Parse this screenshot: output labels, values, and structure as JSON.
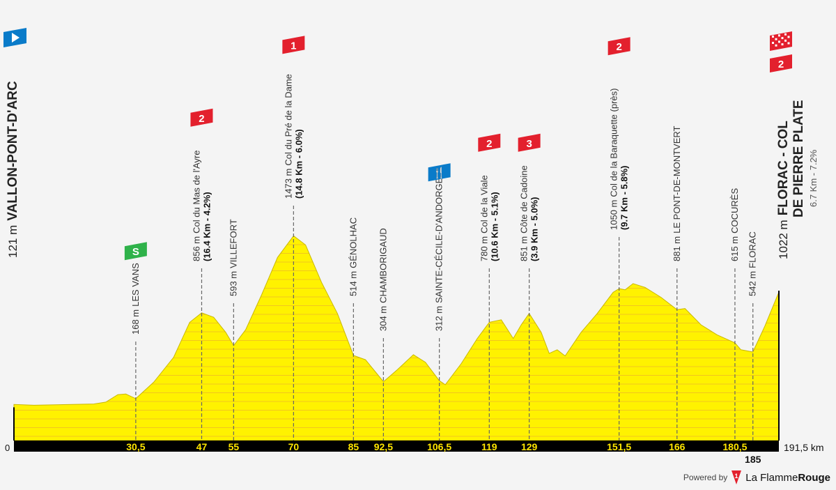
{
  "chart_data": {
    "type": "area",
    "xlim": [
      0,
      191.5
    ],
    "x_unit": "km",
    "profile": [
      [
        0,
        121
      ],
      [
        5,
        115
      ],
      [
        20,
        125
      ],
      [
        23,
        140
      ],
      [
        26,
        200
      ],
      [
        28,
        205
      ],
      [
        30.5,
        168
      ],
      [
        35,
        300
      ],
      [
        40,
        500
      ],
      [
        44,
        780
      ],
      [
        47,
        856
      ],
      [
        50,
        820
      ],
      [
        53,
        700
      ],
      [
        55,
        593
      ],
      [
        58,
        720
      ],
      [
        62,
        1000
      ],
      [
        66,
        1300
      ],
      [
        70,
        1473
      ],
      [
        73,
        1400
      ],
      [
        77,
        1100
      ],
      [
        81,
        850
      ],
      [
        85,
        514
      ],
      [
        88,
        480
      ],
      [
        92.5,
        304
      ],
      [
        96,
        400
      ],
      [
        100,
        520
      ],
      [
        103,
        460
      ],
      [
        106.5,
        312
      ],
      [
        108,
        280
      ],
      [
        112,
        450
      ],
      [
        116,
        650
      ],
      [
        119,
        780
      ],
      [
        122,
        800
      ],
      [
        125,
        650
      ],
      [
        127,
        760
      ],
      [
        129,
        851
      ],
      [
        132,
        700
      ],
      [
        134,
        530
      ],
      [
        136,
        560
      ],
      [
        138,
        510
      ],
      [
        142,
        700
      ],
      [
        146,
        850
      ],
      [
        150,
        1020
      ],
      [
        151.5,
        1050
      ],
      [
        153,
        1040
      ],
      [
        155,
        1090
      ],
      [
        158,
        1060
      ],
      [
        162,
        980
      ],
      [
        166,
        881
      ],
      [
        168,
        890
      ],
      [
        172,
        760
      ],
      [
        176,
        680
      ],
      [
        180.5,
        615
      ],
      [
        182,
        560
      ],
      [
        185,
        542
      ],
      [
        188,
        750
      ],
      [
        191.5,
        1022
      ]
    ],
    "km_ticks": [
      "30,5",
      "47",
      "55",
      "70",
      "85",
      "92,5",
      "106,5",
      "119",
      "129",
      "151,5",
      "166",
      "180,5"
    ],
    "km_tick_values": [
      30.5,
      47,
      55,
      70,
      85,
      92.5,
      106.5,
      119,
      129,
      151.5,
      166,
      180.5
    ],
    "extra_tick": {
      "km": 185,
      "label": "185"
    },
    "origin_label": "0",
    "end_label": "191,5 km",
    "fill_color": "#fff200",
    "stripe_color": "#e8a23a",
    "start": {
      "km": 0,
      "alt": "121 m",
      "name": "VALLON-PONT-D'ARC",
      "icon": "start-flag-icon",
      "icon_color": "#0a7bc9"
    },
    "finish": {
      "km": 191.5,
      "alt": "1022 m",
      "name1": "FLORAC - COL",
      "name2": "DE PIERRE PLATE",
      "climb": "6.7 Km - 7.2%",
      "icon": "finish-checkered-flag-icon",
      "category": "2",
      "icon_color": "#e3202d"
    },
    "points": [
      {
        "km": 30.5,
        "alt": "168 m",
        "name": "LES VANS",
        "icon": "sprint-icon",
        "badge": "S",
        "color": "#2fb24a"
      },
      {
        "km": 47,
        "alt": "856 m",
        "name": "Col du Mas de l'Ayre",
        "detail": "(16.4 Km - 4.2%)",
        "icon": "climb-category-icon",
        "badge": "2",
        "color": "#e3202d"
      },
      {
        "km": 55,
        "alt": "593 m",
        "name": "VILLEFORT"
      },
      {
        "km": 70,
        "alt": "1473 m",
        "name": "Col du Pré de la Dame",
        "detail": "(14.8 Km - 6.0%)",
        "icon": "climb-category-icon",
        "badge": "1",
        "color": "#e3202d"
      },
      {
        "km": 85,
        "alt": "514 m",
        "name": "GÉNOLHAC"
      },
      {
        "km": 92.5,
        "alt": "304 m",
        "name": "CHAMBORIGAUD"
      },
      {
        "km": 106.5,
        "alt": "312 m",
        "name": "SAINTE-CÉCILE-D'ANDORGE",
        "icon": "feed-zone-icon",
        "badge": "🍴",
        "color": "#0a7bc9"
      },
      {
        "km": 119,
        "alt": "780 m",
        "name": "Col de la Viale",
        "detail": "(10.6 Km - 5.1%)",
        "icon": "climb-category-icon",
        "badge": "2",
        "color": "#e3202d"
      },
      {
        "km": 129,
        "alt": "851 m",
        "name": "Côte de Cadoine",
        "detail": "(3.9 Km - 5.0%)",
        "icon": "climb-category-icon",
        "badge": "3",
        "color": "#e3202d"
      },
      {
        "km": 151.5,
        "alt": "1050 m",
        "name": "Col de la Baraquette (près)",
        "detail": "(9.7 Km - 5.8%)",
        "icon": "climb-category-icon",
        "badge": "2",
        "color": "#e3202d"
      },
      {
        "km": 166,
        "alt": "881 m",
        "name": "LE PONT-DE-MONTVERT"
      },
      {
        "km": 180.5,
        "alt": "615 m",
        "name": "COCURÈS"
      },
      {
        "km": 185,
        "alt": "542 m",
        "name": "FLORAC"
      }
    ]
  },
  "footer": {
    "powered_by": "Powered by",
    "brand_light": "La Flamme",
    "brand_bold": "Rouge",
    "logo_digit": "1"
  }
}
